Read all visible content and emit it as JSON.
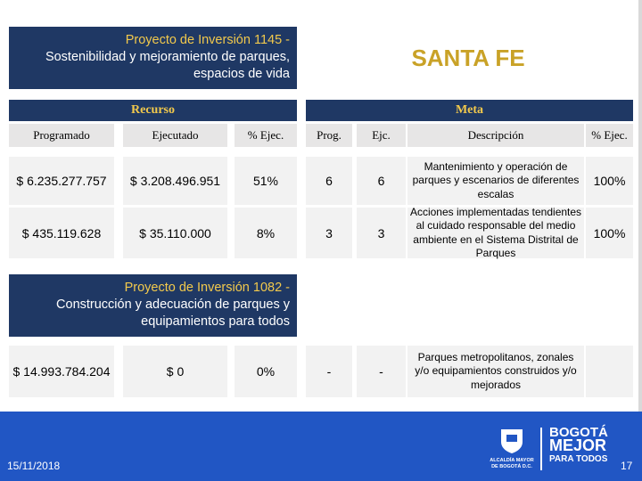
{
  "header": {
    "project1": [
      "Proyecto de Inversión 1145 -",
      "Sostenibilidad y mejoramiento de parques,",
      "espacios de vida"
    ],
    "location": "SANTA FE"
  },
  "sections": {
    "resource": "Recurso",
    "goal": "Meta"
  },
  "table": {
    "columns": [
      "Programado",
      "Ejecutado",
      "% Ejec.",
      "Prog.",
      "Ejc.",
      "Descripción",
      "% Ejec."
    ],
    "rows": [
      [
        "$ 6.235.277.757",
        "$ 3.208.496.951",
        "51%",
        "6",
        "6",
        "Mantenimiento y operación de parques y escenarios de diferentes escalas",
        "100%"
      ],
      [
        "$ 435.119.628",
        "$ 35.110.000",
        "8%",
        "3",
        "3",
        "Acciones implementadas tendientes al cuidado responsable del medio ambiente en el Sistema Distrital de Parques",
        "100%"
      ]
    ]
  },
  "project2": {
    "title": [
      "Proyecto de Inversión 1082 -",
      "Construcción y adecuación de parques y",
      "equipamientos para todos"
    ],
    "row": [
      "$ 14.993.784.204",
      "$ 0",
      "0%",
      "-",
      "-",
      "Parques metropolitanos, zonales y/o equipamientos construidos y/o mejorados",
      ""
    ]
  },
  "footer": {
    "date": "15/11/2018",
    "page": "17",
    "logo_left": [
      "ALCALDÍA MAYOR",
      "DE BOGOTÁ D.C."
    ],
    "logo_right": [
      "BOGOTÁ",
      "MEJOR",
      "PARA TODOS"
    ]
  }
}
